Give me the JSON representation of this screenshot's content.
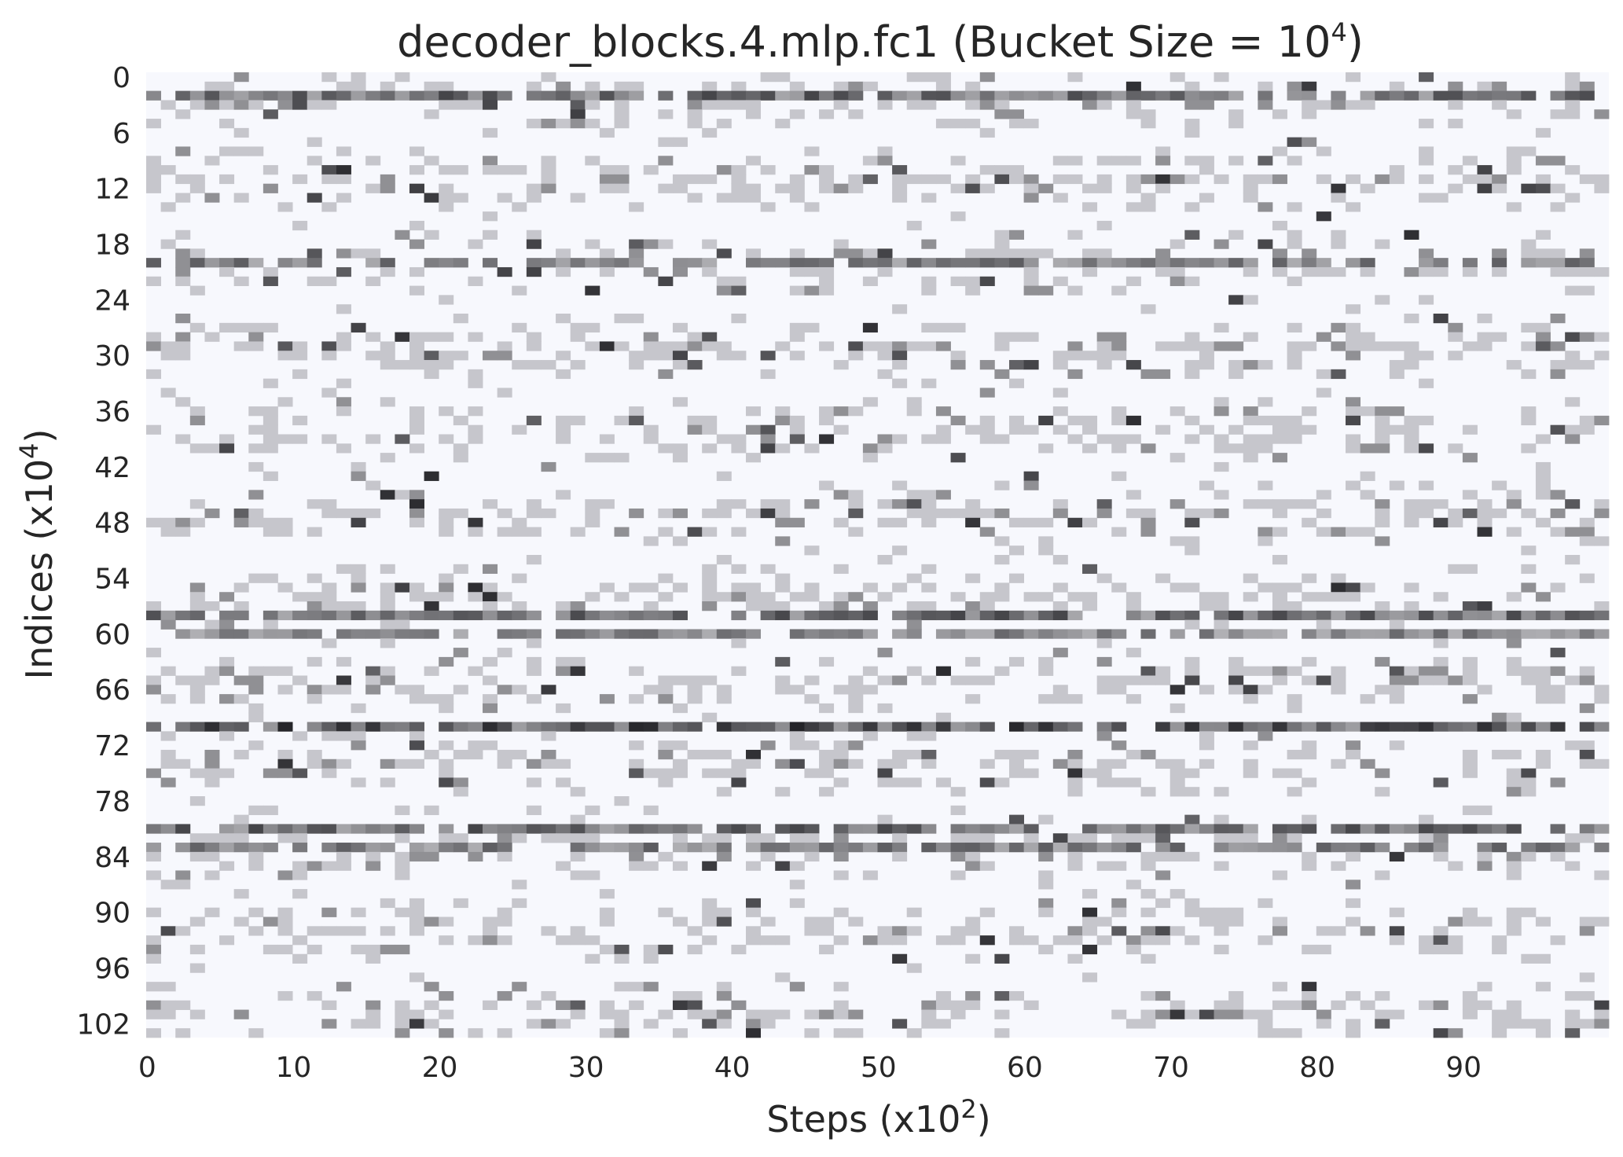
{
  "chart_data": {
    "type": "heatmap",
    "title": {
      "base": "decoder_blocks.4.mlp.fc1 (Bucket Size = 10",
      "sup": "4",
      "end": ")"
    },
    "xlabel": {
      "base": "Steps (x10",
      "sup": "2",
      "end": ")"
    },
    "ylabel": {
      "base": "Indices (x10",
      "sup": "4",
      "end": ")"
    },
    "x_ticks": [
      "0",
      "10",
      "20",
      "30",
      "40",
      "50",
      "60",
      "70",
      "80",
      "90"
    ],
    "y_ticks": [
      "0",
      "6",
      "12",
      "18",
      "24",
      "30",
      "36",
      "42",
      "48",
      "54",
      "60",
      "66",
      "72",
      "78",
      "84",
      "90",
      "96",
      "102"
    ],
    "x_range": [
      0,
      100
    ],
    "y_range": [
      0,
      104
    ],
    "colormap": "greys",
    "color_min": "#f7f8fd",
    "color_mid": "#c6c6cc",
    "color_max": "#111111",
    "grid": false,
    "colorbar": false,
    "dark_rows": [
      {
        "row": 2,
        "intensity": 0.55
      },
      {
        "row": 20,
        "intensity": 0.45
      },
      {
        "row": 58,
        "intensity": 0.55
      },
      {
        "row": 60,
        "intensity": 0.4
      },
      {
        "row": 70,
        "intensity": 0.7
      },
      {
        "row": 81,
        "intensity": 0.55
      },
      {
        "row": 83,
        "intensity": 0.45
      }
    ],
    "values_note": ""
  }
}
